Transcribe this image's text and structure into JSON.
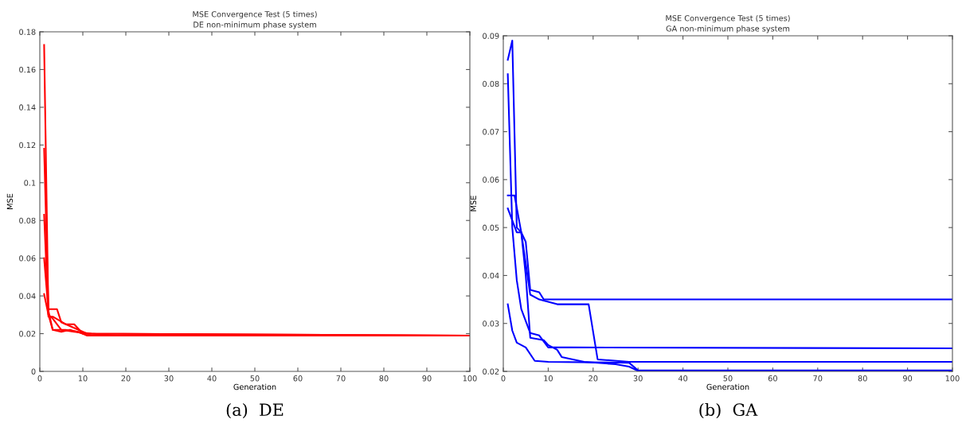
{
  "chart_data": [
    {
      "type": "line",
      "title": "MSE Convergence Test (5 times)",
      "subtitle": "DE non-minimum phase system",
      "xlabel": "Generation",
      "ylabel": "MSE",
      "annotations": [
        "(a)  DE"
      ],
      "xlim": [
        0,
        100
      ],
      "ylim": [
        0,
        0.18
      ],
      "xticks": [
        0,
        10,
        20,
        30,
        40,
        50,
        60,
        70,
        80,
        90,
        100
      ],
      "yticks": [
        0,
        0.02,
        0.04,
        0.06,
        0.08,
        0.1,
        0.12,
        0.14,
        0.16,
        0.18
      ],
      "grid": false,
      "legend": false,
      "series": [
        {
          "color": "#ff0000",
          "x": [
            1,
            2,
            3,
            5,
            8,
            12,
            18,
            100
          ],
          "values": [
            0.173,
            0.03,
            0.028,
            0.022,
            0.021,
            0.02,
            0.019,
            0.019
          ]
        },
        {
          "color": "#ff0000",
          "x": [
            1,
            2,
            4,
            5,
            9,
            12,
            100
          ],
          "values": [
            0.118,
            0.033,
            0.033,
            0.026,
            0.022,
            0.019,
            0.019
          ]
        },
        {
          "color": "#ff0000",
          "x": [
            1,
            2,
            3,
            6,
            8,
            10,
            100
          ],
          "values": [
            0.083,
            0.029,
            0.029,
            0.025,
            0.025,
            0.02,
            0.019
          ]
        },
        {
          "color": "#ff0000",
          "x": [
            1,
            2,
            3,
            6,
            9,
            11,
            100
          ],
          "values": [
            0.06,
            0.032,
            0.022,
            0.022,
            0.021,
            0.019,
            0.019
          ]
        },
        {
          "color": "#ff0000",
          "x": [
            1,
            2,
            3,
            5,
            7,
            10,
            100
          ],
          "values": [
            0.041,
            0.03,
            0.022,
            0.021,
            0.022,
            0.02,
            0.019
          ]
        }
      ]
    },
    {
      "type": "line",
      "title": "MSE Convergence Test (5 times)",
      "subtitle": "GA non-minimum phase system",
      "xlabel": "Generation",
      "ylabel": "MSE",
      "annotations": [
        "(b)  GA"
      ],
      "xlim": [
        0,
        100
      ],
      "ylim": [
        0.02,
        0.09
      ],
      "xticks": [
        0,
        10,
        20,
        30,
        40,
        50,
        60,
        70,
        80,
        90,
        100
      ],
      "yticks": [
        0.02,
        0.03,
        0.04,
        0.05,
        0.06,
        0.07,
        0.08,
        0.09
      ],
      "grid": false,
      "legend": false,
      "series": [
        {
          "color": "#0000ff",
          "x": [
            1,
            2,
            3,
            4,
            5,
            6,
            8,
            9,
            100
          ],
          "values": [
            0.085,
            0.089,
            0.05,
            0.049,
            0.047,
            0.037,
            0.0365,
            0.035,
            0.035
          ]
        },
        {
          "color": "#0000ff",
          "x": [
            1,
            2,
            3,
            4,
            6,
            8,
            10,
            15,
            100
          ],
          "values": [
            0.082,
            0.05,
            0.039,
            0.033,
            0.028,
            0.0275,
            0.025,
            0.025,
            0.0248
          ]
        },
        {
          "color": "#0000ff",
          "x": [
            1,
            2.5,
            4,
            6,
            8,
            10,
            12,
            19,
            21,
            28,
            100
          ],
          "values": [
            0.0567,
            0.0567,
            0.049,
            0.036,
            0.035,
            0.0345,
            0.034,
            0.034,
            0.0225,
            0.022,
            0.022
          ]
        },
        {
          "color": "#0000ff",
          "x": [
            1,
            3,
            4,
            5,
            6,
            9,
            10,
            12,
            13,
            18,
            25,
            28,
            30,
            100
          ],
          "values": [
            0.054,
            0.049,
            0.049,
            0.04,
            0.027,
            0.0265,
            0.0255,
            0.0245,
            0.023,
            0.022,
            0.0215,
            0.021,
            0.0201,
            0.0201
          ]
        },
        {
          "color": "#0000ff",
          "x": [
            1,
            2,
            3,
            5,
            7,
            10,
            28,
            30,
            100
          ],
          "values": [
            0.034,
            0.0285,
            0.026,
            0.025,
            0.0222,
            0.022,
            0.0218,
            0.0202,
            0.0202
          ]
        }
      ]
    }
  ]
}
